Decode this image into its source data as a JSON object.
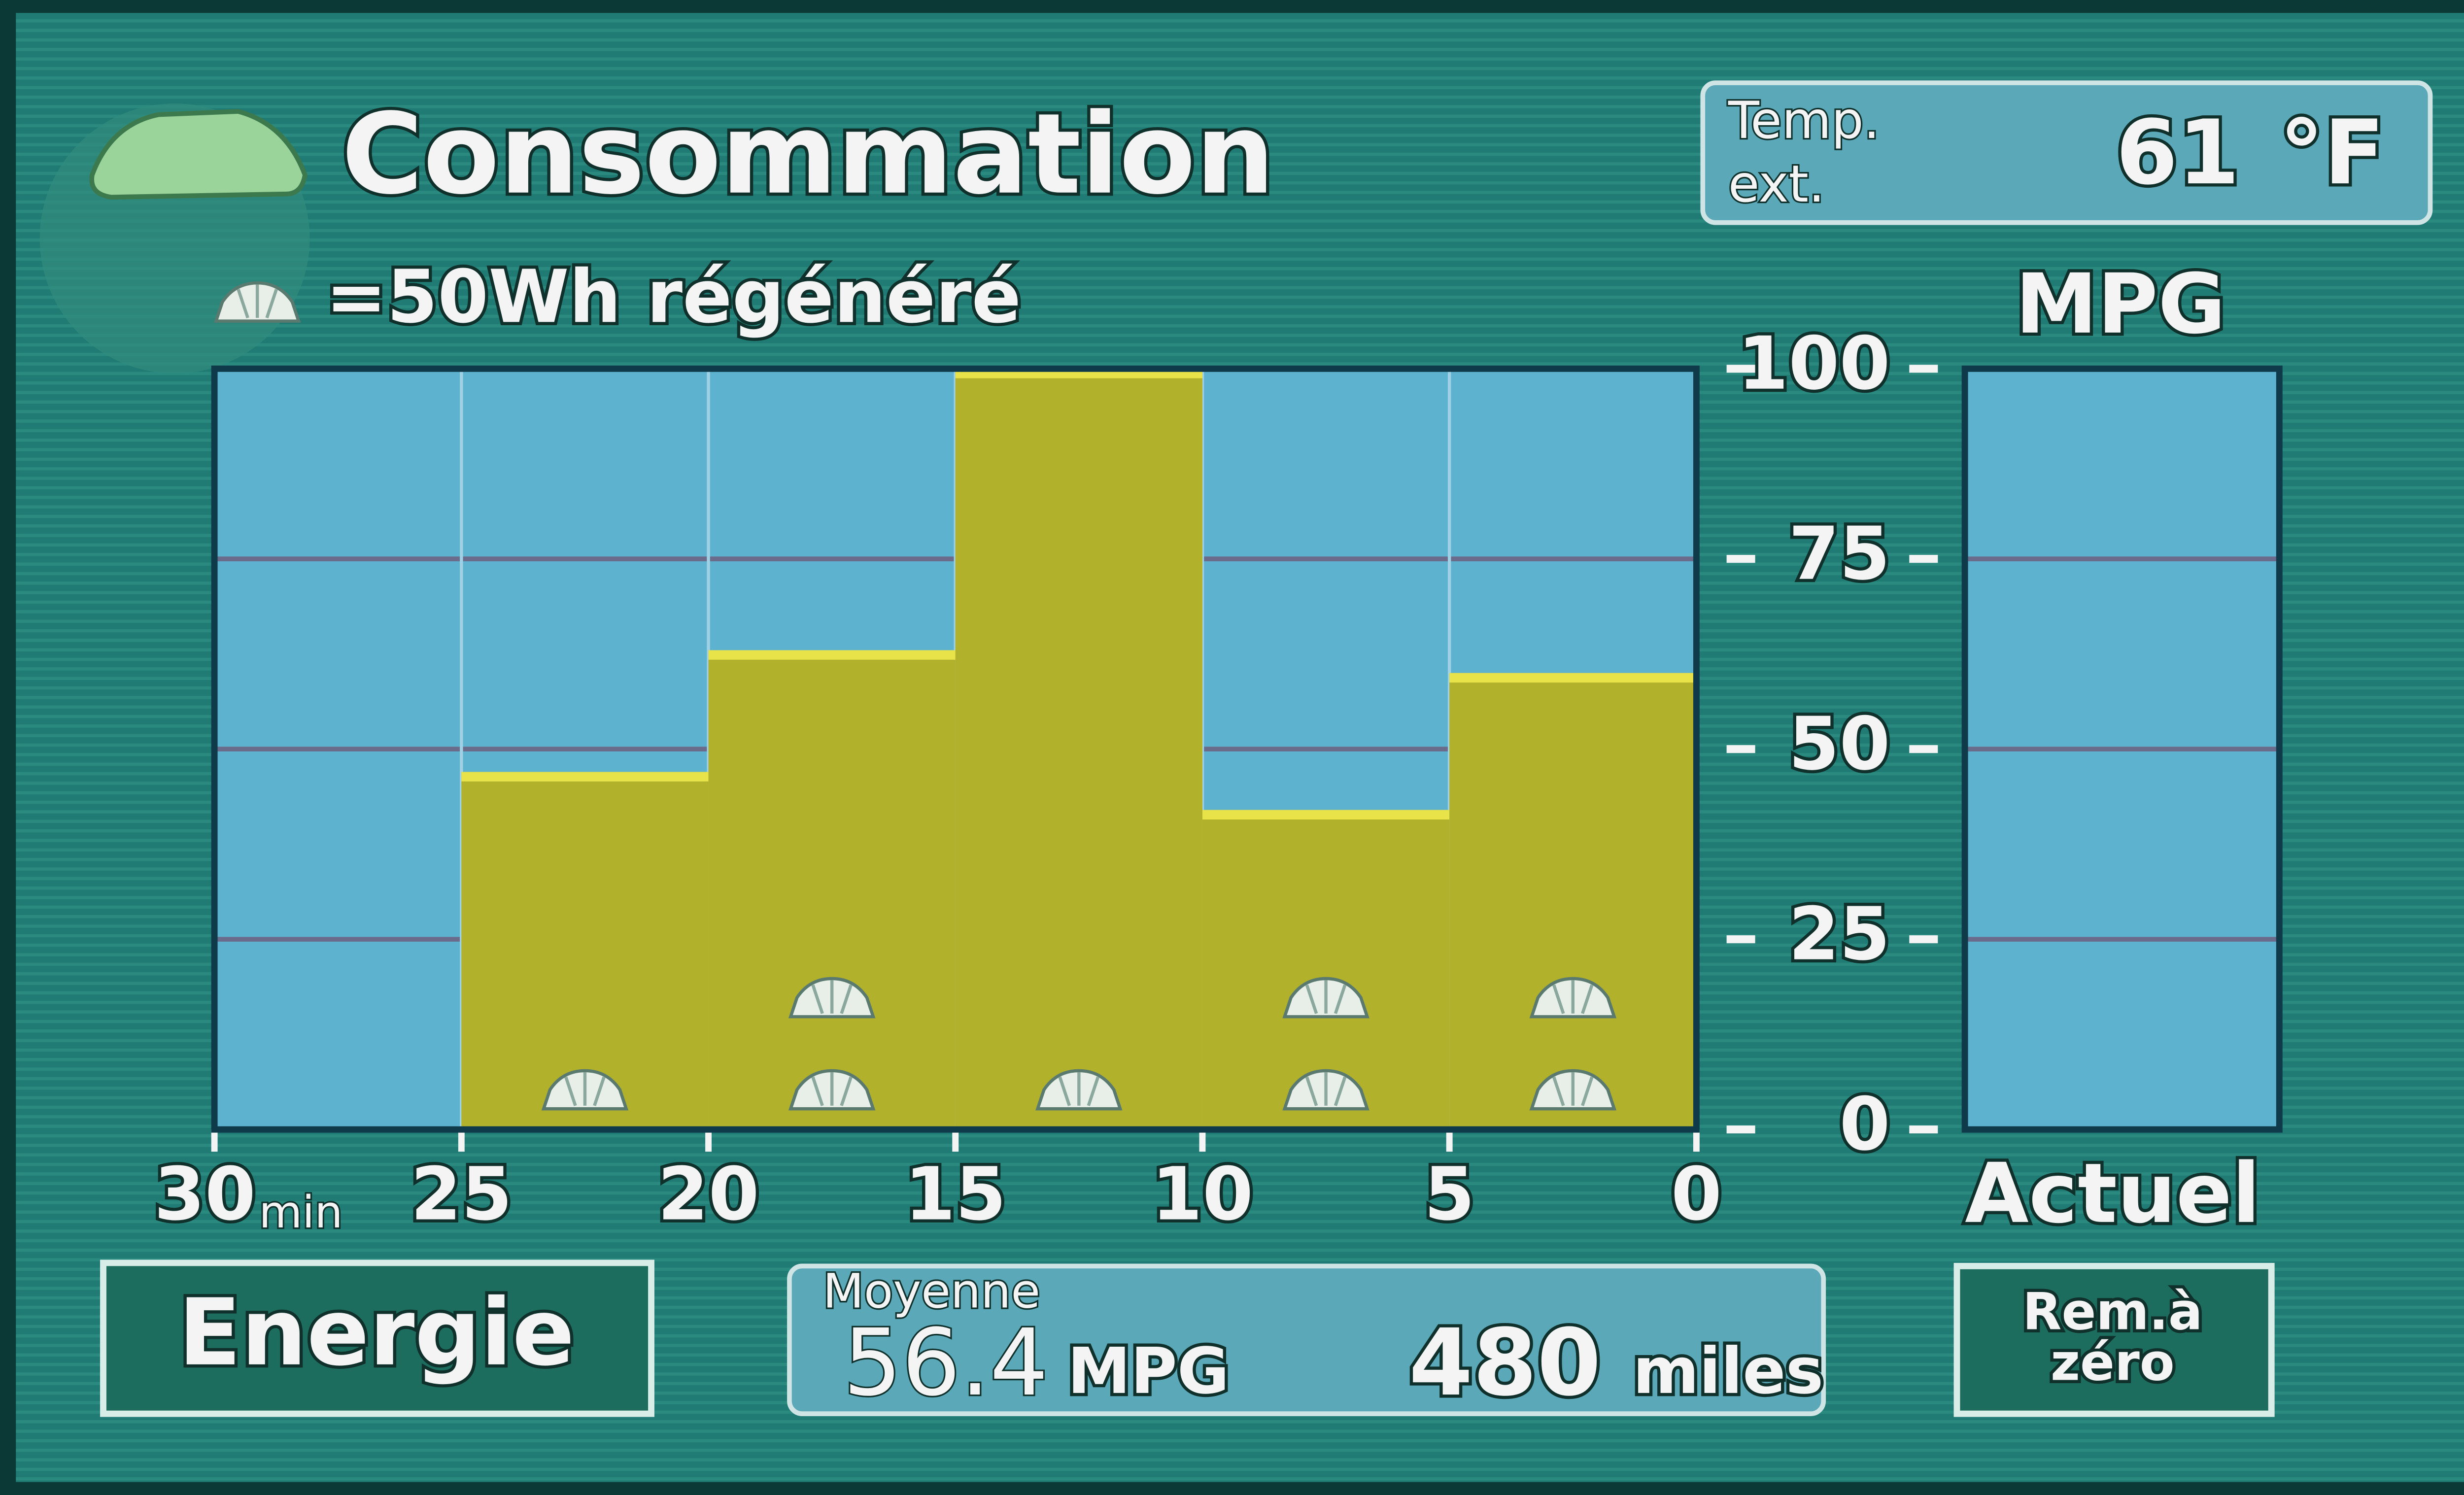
{
  "header": {
    "title": "Consommation"
  },
  "temperature": {
    "label_line1": "Temp.",
    "label_line2": "ext.",
    "value": 61,
    "unit": "°F"
  },
  "chart_data": {
    "type": "histogram",
    "legend": "=50Wh régénéré",
    "y_label": "MPG",
    "x_unit": "min",
    "bins": [
      30,
      25,
      20,
      15,
      10,
      5,
      0
    ],
    "values": [
      0,
      47,
      63,
      100,
      42,
      60
    ],
    "regen_counts": [
      0,
      1,
      2,
      1,
      2,
      2
    ],
    "color": "#b2b12c",
    "top_color": "#e9e34a",
    "plot_color": "#5cb2cf",
    "grid": true,
    "xlim": [
      30,
      0
    ],
    "xticks": [
      30,
      25,
      20,
      15,
      10,
      5,
      0
    ],
    "ylim": [
      0,
      100
    ],
    "yticks": [
      0,
      25,
      50,
      75,
      100
    ],
    "current_label": "Actuel"
  },
  "buttons": {
    "energy": "Energie",
    "reset_line1": "Rem.à",
    "reset_line2": "zéro"
  },
  "average": {
    "label": "Moyenne",
    "mpg": 56.4,
    "mpg_unit": "MPG",
    "distance": 480,
    "distance_unit": "miles"
  }
}
